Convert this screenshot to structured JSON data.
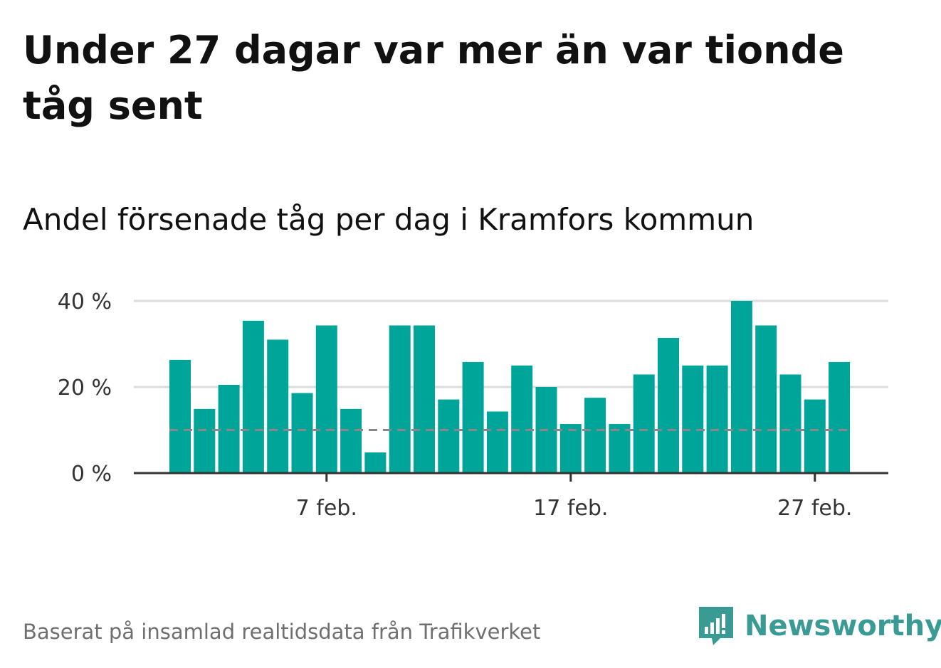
{
  "header": {
    "title": "Under 27 dagar var mer än var tionde tåg sent",
    "subtitle": "Andel försenade tåg per dag i Kramfors kommun"
  },
  "footer": {
    "source": "Baserat på insamlad realtidsdata från Trafikverket",
    "brand": "Newsworthy"
  },
  "colors": {
    "bar": "#00a59a",
    "grid": "#dcdcdc",
    "axis": "#333333",
    "reference_line": "#888888",
    "brand": "#3a9a94"
  },
  "chart_data": {
    "type": "bar",
    "title": "Andel försenade tåg per dag i Kramfors kommun",
    "xlabel": "",
    "ylabel": "",
    "y_unit": "%",
    "ylim": [
      0,
      40
    ],
    "yticks": [
      {
        "value": 0,
        "label": "0 %"
      },
      {
        "value": 20,
        "label": "20 %"
      },
      {
        "value": 40,
        "label": "40 %"
      }
    ],
    "xticks": [
      {
        "day": 7,
        "label": "7 feb."
      },
      {
        "day": 17,
        "label": "17 feb."
      },
      {
        "day": 27,
        "label": "27 feb."
      }
    ],
    "days": [
      1,
      2,
      3,
      4,
      5,
      6,
      7,
      8,
      9,
      10,
      11,
      12,
      13,
      14,
      15,
      16,
      17,
      18,
      19,
      20,
      21,
      22,
      23,
      24,
      25,
      26,
      27,
      28
    ],
    "values": [
      26.3,
      14.9,
      20.5,
      35.4,
      31.0,
      18.6,
      34.3,
      14.9,
      4.8,
      34.3,
      34.3,
      17.1,
      25.8,
      14.3,
      25.0,
      20.0,
      11.4,
      17.5,
      11.4,
      22.9,
      31.4,
      25.0,
      25.0,
      40.0,
      34.3,
      22.9,
      17.1,
      25.8
    ],
    "reference_line": 10,
    "grid": true,
    "legend": "none"
  }
}
